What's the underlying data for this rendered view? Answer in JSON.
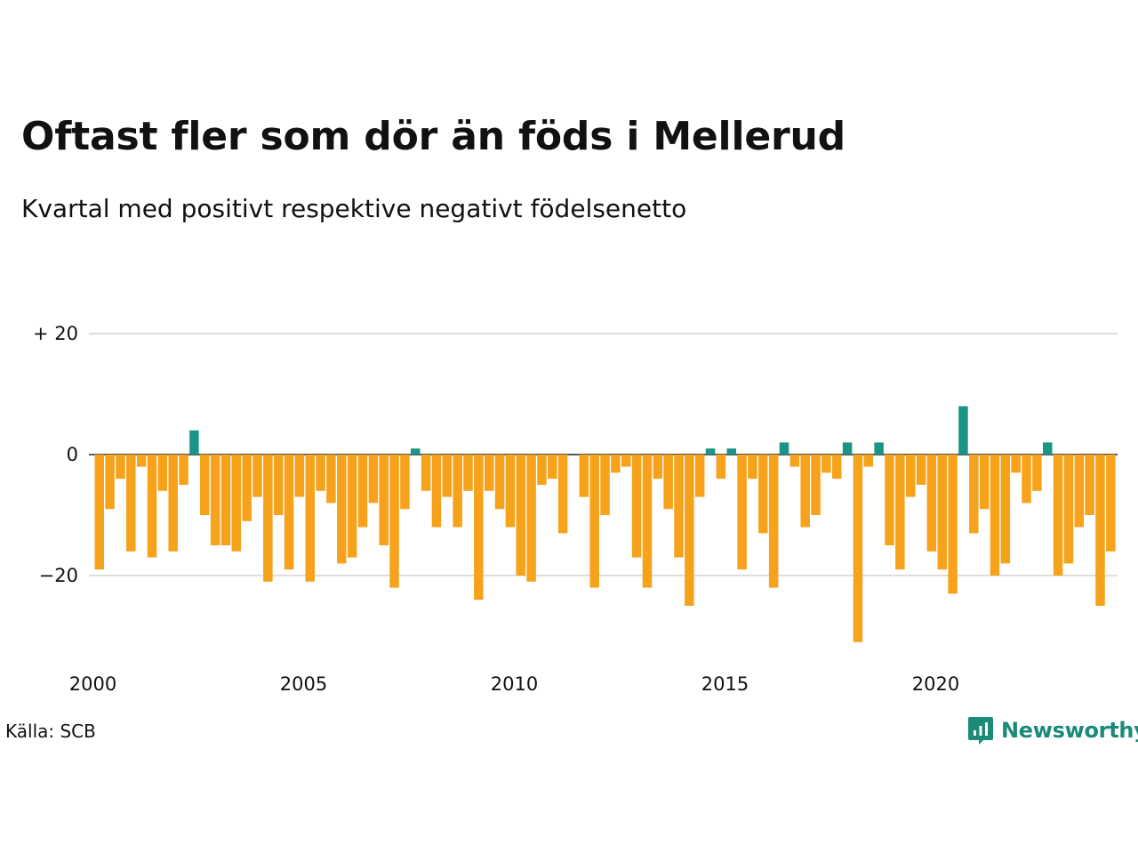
{
  "title": "Oftast fler som dör än föds i Mellerud",
  "subtitle": "Kvartal med positivt respektive negativt födelsenetto",
  "source": "Källa: SCB",
  "brand": "Newsworthy",
  "colors": {
    "positive": "#1a9484",
    "negative": "#f7a21b",
    "grid": "#dddddd",
    "brand": "#1b8a79"
  },
  "chart_data": {
    "type": "bar",
    "title": "Oftast fler som dör än föds i Mellerud",
    "subtitle": "Kvartal med positivt respektive negativt födelsenetto",
    "xlabel": "",
    "ylabel": "",
    "ylim": [
      -32,
      20
    ],
    "grid": true,
    "y_ticks": [
      {
        "value": 20,
        "label": "+ 20"
      },
      {
        "value": 0,
        "label": "0"
      },
      {
        "value": -20,
        "label": "−20"
      }
    ],
    "x_ticks": [
      "2000",
      "2005",
      "2010",
      "2015",
      "2020"
    ],
    "x_start_year": 2000,
    "values": [
      -19,
      -9,
      -4,
      -16,
      -2,
      -17,
      -6,
      -16,
      -5,
      4,
      -10,
      -15,
      -15,
      -16,
      -11,
      -7,
      -21,
      -10,
      -19,
      -7,
      -21,
      -6,
      -8,
      -18,
      -17,
      -12,
      -8,
      -15,
      -22,
      -9,
      1,
      -6,
      -12,
      -7,
      -12,
      -6,
      -24,
      -6,
      -9,
      -12,
      -20,
      -21,
      -5,
      -4,
      -13,
      0,
      -7,
      -22,
      -10,
      -3,
      -2,
      -17,
      -22,
      -4,
      -9,
      -17,
      -25,
      -7,
      1,
      -4,
      1,
      -19,
      -4,
      -13,
      -22,
      2,
      -2,
      -12,
      -10,
      -3,
      -4,
      2,
      -31,
      -2,
      2,
      -15,
      -19,
      -7,
      -5,
      -16,
      -19,
      -23,
      8,
      -13,
      -9,
      -20,
      -18,
      -3,
      -8,
      -6,
      2,
      -20,
      -18,
      -12,
      -10,
      -25,
      -16
    ]
  }
}
